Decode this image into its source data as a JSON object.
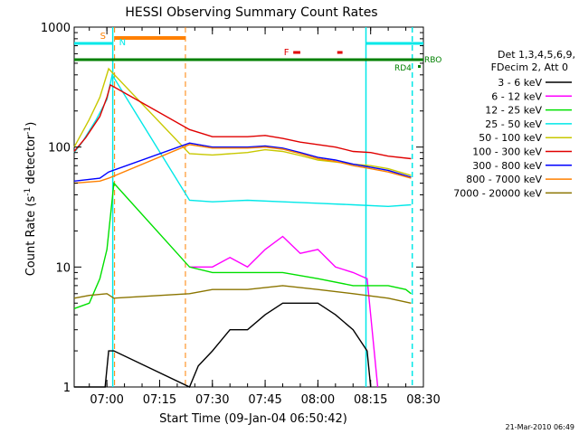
{
  "chart_data": {
    "type": "line",
    "title": "HESSI Observing Summary Count Rates",
    "xlabel": "Start Time (09-Jan-04 06:50:42)",
    "ylabel_main": "Count Rate (s",
    "ylabel_sup1": "-1",
    "ylabel_mid": " detector",
    "ylabel_sup2": "-1",
    "ylabel_end": ")",
    "yscale": "log",
    "ylim": [
      1,
      1000
    ],
    "xlim_minutes": [
      "06:50:42",
      "08:30:00"
    ],
    "xticks": [
      "07:00",
      "07:15",
      "07:30",
      "07:45",
      "08:00",
      "08:15",
      "08:30"
    ],
    "yticks": [
      "1",
      "10",
      "100",
      "1000"
    ],
    "legend_header": [
      "Det 1,3,4,5,6,9,",
      "FDecim 2, Att 0"
    ],
    "legend": [
      {
        "label": "3 - 6 keV",
        "color": "#000000"
      },
      {
        "label": "6 - 12 keV",
        "color": "#ff00ff"
      },
      {
        "label": "12 - 25 keV",
        "color": "#00e000"
      },
      {
        "label": "25 - 50 keV",
        "color": "#00e8e8"
      },
      {
        "label": "50 - 100 keV",
        "color": "#c8c800"
      },
      {
        "label": "100 - 300 keV",
        "color": "#e00000"
      },
      {
        "label": "300 - 800 keV",
        "color": "#0000ff"
      },
      {
        "label": "800 - 7000 keV",
        "color": "#ff8000"
      },
      {
        "label": "7000 - 20000 keV",
        "color": "#8b7500"
      }
    ],
    "flags": {
      "saa_label": "S",
      "night_label": "N",
      "flare_label": "F",
      "rbo_label": "RBO",
      "rd4_label": "RD4"
    },
    "segments": [
      {
        "name": "3 - 6 keV",
        "color": "#000000",
        "points": [
          [
            "06:50:42",
            1
          ],
          [
            "06:59:30",
            1
          ],
          [
            "07:00:30",
            2
          ],
          [
            "07:02:00",
            2
          ],
          [
            "07:23:30",
            1
          ],
          [
            "07:26:00",
            1.5
          ],
          [
            "07:30:00",
            2
          ],
          [
            "07:35:00",
            3
          ],
          [
            "07:40:00",
            3
          ],
          [
            "07:45:00",
            4
          ],
          [
            "07:50:00",
            5
          ],
          [
            "07:55:00",
            5
          ],
          [
            "08:00:00",
            5
          ],
          [
            "08:05:00",
            4
          ],
          [
            "08:10:00",
            3
          ],
          [
            "08:14:00",
            2
          ],
          [
            "08:15:00",
            1
          ]
        ]
      },
      {
        "name": "6 - 12 keV",
        "color": "#ff00ff",
        "points": [
          [
            "07:23:30",
            10
          ],
          [
            "07:30:00",
            10
          ],
          [
            "07:35:00",
            12
          ],
          [
            "07:40:00",
            10
          ],
          [
            "07:45:00",
            14
          ],
          [
            "07:50:00",
            18
          ],
          [
            "07:55:00",
            13
          ],
          [
            "08:00:00",
            14
          ],
          [
            "08:05:00",
            10
          ],
          [
            "08:10:00",
            9
          ],
          [
            "08:14:00",
            8
          ],
          [
            "08:17:00",
            1
          ]
        ]
      },
      {
        "name": "12 - 25 keV",
        "color": "#00e000",
        "points": [
          [
            "06:50:42",
            4.5
          ],
          [
            "06:55:00",
            5
          ],
          [
            "06:58:00",
            8
          ],
          [
            "07:00:00",
            14
          ],
          [
            "07:02:00",
            50
          ],
          [
            "07:23:30",
            10
          ],
          [
            "07:30:00",
            9
          ],
          [
            "07:40:00",
            9
          ],
          [
            "07:50:00",
            9
          ],
          [
            "08:00:00",
            8
          ],
          [
            "08:10:00",
            7
          ],
          [
            "08:20:00",
            7
          ],
          [
            "08:25:00",
            6.5
          ],
          [
            "08:26:30",
            6
          ]
        ]
      },
      {
        "name": "25 - 50 keV",
        "color": "#00e8e8",
        "points": [
          [
            "06:50:42",
            90
          ],
          [
            "06:53:00",
            110
          ],
          [
            "06:57:00",
            170
          ],
          [
            "07:00:00",
            250
          ],
          [
            "07:01:30",
            400
          ],
          [
            "07:23:30",
            36
          ],
          [
            "07:30:00",
            35
          ],
          [
            "07:40:00",
            36
          ],
          [
            "07:50:00",
            35
          ],
          [
            "08:00:00",
            34
          ],
          [
            "08:10:00",
            33
          ],
          [
            "08:20:00",
            32
          ],
          [
            "08:26:30",
            33
          ]
        ]
      },
      {
        "name": "50 - 100 keV",
        "color": "#c8c800",
        "points": [
          [
            "06:50:42",
            100
          ],
          [
            "06:55:00",
            170
          ],
          [
            "06:58:00",
            260
          ],
          [
            "07:00:30",
            450
          ],
          [
            "07:23:30",
            88
          ],
          [
            "07:30:00",
            86
          ],
          [
            "07:40:00",
            90
          ],
          [
            "07:45:00",
            95
          ],
          [
            "07:50:00",
            92
          ],
          [
            "07:55:00",
            85
          ],
          [
            "08:00:00",
            78
          ],
          [
            "08:05:00",
            75
          ],
          [
            "08:10:00",
            72
          ],
          [
            "08:15:00",
            70
          ],
          [
            "08:20:00",
            66
          ],
          [
            "08:26:30",
            58
          ]
        ]
      },
      {
        "name": "100 - 300 keV",
        "color": "#e00000",
        "points": [
          [
            "06:50:42",
            92
          ],
          [
            "06:54:00",
            120
          ],
          [
            "06:58:00",
            180
          ],
          [
            "07:00:00",
            260
          ],
          [
            "07:01:00",
            330
          ],
          [
            "07:23:30",
            140
          ],
          [
            "07:30:00",
            122
          ],
          [
            "07:40:00",
            122
          ],
          [
            "07:45:00",
            125
          ],
          [
            "07:50:00",
            118
          ],
          [
            "07:55:00",
            110
          ],
          [
            "08:00:00",
            105
          ],
          [
            "08:05:00",
            100
          ],
          [
            "08:10:00",
            92
          ],
          [
            "08:15:00",
            90
          ],
          [
            "08:20:00",
            84
          ],
          [
            "08:26:30",
            80
          ]
        ]
      },
      {
        "name": "300 - 800 keV",
        "color": "#0000ff",
        "points": [
          [
            "06:50:42",
            52
          ],
          [
            "06:58:00",
            55
          ],
          [
            "07:00:30",
            62
          ],
          [
            "07:23:30",
            108
          ],
          [
            "07:30:00",
            100
          ],
          [
            "07:40:00",
            100
          ],
          [
            "07:45:00",
            102
          ],
          [
            "07:50:00",
            98
          ],
          [
            "07:55:00",
            90
          ],
          [
            "08:00:00",
            82
          ],
          [
            "08:05:00",
            78
          ],
          [
            "08:10:00",
            72
          ],
          [
            "08:15:00",
            68
          ],
          [
            "08:20:00",
            64
          ],
          [
            "08:26:30",
            56
          ]
        ]
      },
      {
        "name": "800 - 7000 keV",
        "color": "#ff8000",
        "points": [
          [
            "06:50:42",
            50
          ],
          [
            "06:58:00",
            52
          ],
          [
            "07:00:30",
            55
          ],
          [
            "07:23:30",
            105
          ],
          [
            "07:30:00",
            98
          ],
          [
            "07:40:00",
            98
          ],
          [
            "07:45:00",
            100
          ],
          [
            "07:50:00",
            96
          ],
          [
            "07:55:00",
            88
          ],
          [
            "08:00:00",
            80
          ],
          [
            "08:05:00",
            76
          ],
          [
            "08:10:00",
            70
          ],
          [
            "08:15:00",
            66
          ],
          [
            "08:20:00",
            62
          ],
          [
            "08:26:30",
            55
          ]
        ]
      },
      {
        "name": "7000 - 20000 keV",
        "color": "#8b7500",
        "points": [
          [
            "06:50:42",
            5.5
          ],
          [
            "06:55:00",
            5.8
          ],
          [
            "07:00:00",
            6
          ],
          [
            "07:02:00",
            5.5
          ],
          [
            "07:23:30",
            6
          ],
          [
            "07:30:00",
            6.5
          ],
          [
            "07:40:00",
            6.5
          ],
          [
            "07:50:00",
            7
          ],
          [
            "08:00:00",
            6.5
          ],
          [
            "08:10:00",
            6
          ],
          [
            "08:20:00",
            5.5
          ],
          [
            "08:26:30",
            5
          ]
        ]
      }
    ]
  },
  "footer": {
    "timestamp": "21-Mar-2010 06:49"
  }
}
